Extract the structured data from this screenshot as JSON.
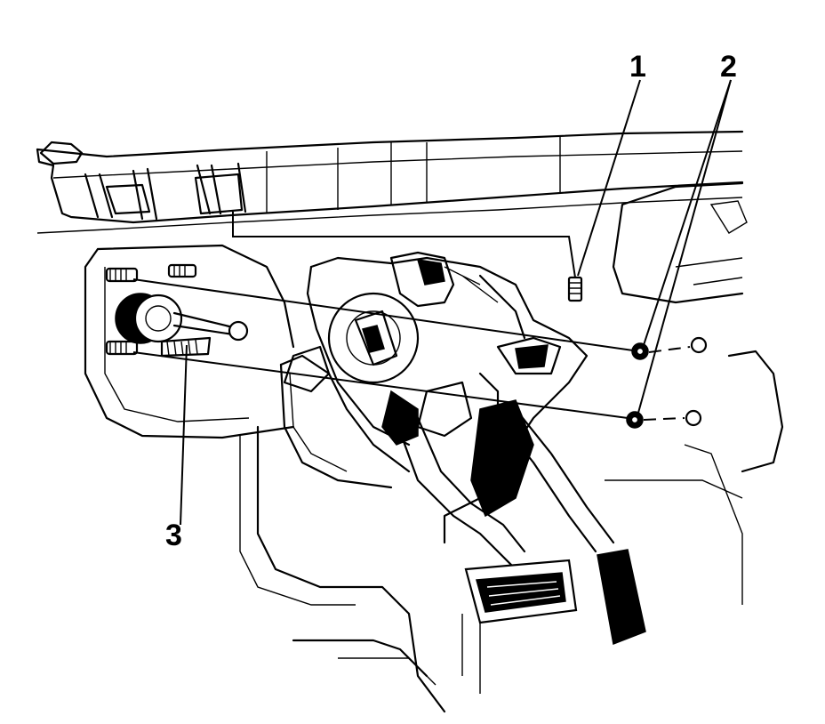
{
  "callouts": {
    "one": "1",
    "two": "2",
    "three": "3"
  }
}
